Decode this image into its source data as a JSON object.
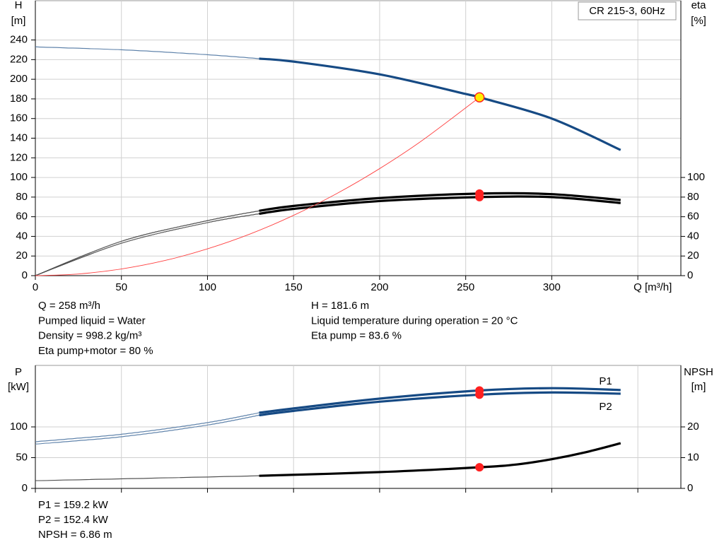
{
  "chart_data": [
    {
      "type": "line",
      "title": "CR 215-3, 60Hz",
      "ylabel": "H",
      "yunit": "[m]",
      "y2label": "eta",
      "y2unit": "[%]",
      "xlim": [
        0,
        375
      ],
      "xticks": [
        0,
        50,
        100,
        150,
        200,
        250,
        300,
        {
          "value": 350,
          "label": "Q [m³/h]"
        }
      ],
      "show_xtick_labels": true,
      "ylim": [
        0,
        280
      ],
      "yticks": [
        0,
        20,
        40,
        60,
        80,
        100,
        120,
        140,
        160,
        180,
        200,
        220,
        240
      ],
      "y2lim": [
        0,
        280
      ],
      "y2ticks": [
        0,
        20,
        40,
        60,
        80,
        100
      ],
      "grid": true,
      "operating_range": [
        130,
        340
      ],
      "duty_q": 258,
      "series": [
        {
          "color": "#164a84",
          "thick_in_range": true,
          "marker_fill": "#ffee00",
          "marker_stroke": "#ff2020",
          "x": [
            0,
            50,
            100,
            130,
            150,
            200,
            250,
            258,
            300,
            340
          ],
          "values": [
            233,
            230,
            225,
            221,
            218,
            205,
            185,
            181.6,
            160,
            128
          ]
        },
        {
          "color": "#000000",
          "axis": "y2",
          "thick_in_range": true,
          "marker_fill": "#ff2020",
          "marker_stroke": "#ff2020",
          "x": [
            0,
            50,
            100,
            130,
            150,
            200,
            258,
            300,
            340
          ],
          "values": [
            0,
            35,
            56,
            66,
            71,
            79,
            83.6,
            83,
            77
          ]
        },
        {
          "color": "#000000",
          "axis": "y2",
          "thick_in_range": true,
          "marker_fill": "#ff2020",
          "marker_stroke": "#ff2020",
          "x": [
            0,
            50,
            100,
            130,
            150,
            200,
            258,
            300,
            340
          ],
          "values": [
            0,
            33,
            54,
            63,
            68,
            76,
            80,
            80,
            74
          ]
        },
        {
          "color": "#ff4040",
          "thick_in_range": false,
          "x": [
            0,
            25,
            50,
            75,
            100,
            125,
            150,
            175,
            200,
            225,
            258
          ],
          "values": [
            0,
            1.7,
            6.8,
            15.3,
            27.3,
            42.6,
            61.4,
            83.5,
            109,
            138,
            181.6
          ]
        }
      ],
      "info_left": [
        "Q = 258 m³/h",
        "Pumped liquid = Water",
        "Density = 998.2 kg/m³",
        "Eta pump+motor = 80 %"
      ],
      "info_right": [
        "H = 181.6 m",
        "Liquid temperature during operation = 20 °C",
        "Eta pump = 83.6 %"
      ]
    },
    {
      "type": "line",
      "ylabel": "P",
      "yunit": "[kW]",
      "y2label": "NPSH",
      "y2unit": "[m]",
      "xlim": [
        0,
        375
      ],
      "xticks": [
        0,
        50,
        100,
        150,
        200,
        250,
        300,
        350
      ],
      "show_xtick_labels": false,
      "ylim": [
        0,
        200
      ],
      "yticks": [
        0,
        50,
        100
      ],
      "y2lim": [
        0,
        40
      ],
      "y2ticks": [
        0,
        10,
        20
      ],
      "grid": true,
      "operating_range": [
        130,
        340
      ],
      "duty_q": 258,
      "series": [
        {
          "name": "P1",
          "color": "#164a84",
          "thick_in_range": true,
          "marker_fill": "#ff2020",
          "marker_stroke": "#ff2020",
          "x": [
            0,
            50,
            100,
            130,
            150,
            200,
            258,
            300,
            340
          ],
          "values": [
            76,
            88,
            107,
            123,
            130,
            146,
            159.2,
            163,
            160
          ]
        },
        {
          "name": "P2",
          "color": "#164a84",
          "thick_in_range": true,
          "marker_fill": "#ff2020",
          "marker_stroke": "#ff2020",
          "x": [
            0,
            50,
            100,
            130,
            150,
            200,
            258,
            300,
            340
          ],
          "values": [
            72,
            84,
            103,
            119,
            126,
            141,
            152.4,
            156,
            154
          ]
        },
        {
          "color": "#000000",
          "axis": "y2",
          "thick_in_range": true,
          "marker_fill": "#ff2020",
          "marker_stroke": "#ff2020",
          "x": [
            0,
            130,
            200,
            258,
            280,
            300,
            320,
            340
          ],
          "values": [
            2.5,
            4.1,
            5.3,
            6.86,
            7.8,
            9.5,
            11.8,
            14.7
          ]
        }
      ],
      "info_left": [
        "P1 = 159.2 kW",
        "P2 = 152.4 kW",
        "NPSH = 6.86 m"
      ]
    }
  ]
}
